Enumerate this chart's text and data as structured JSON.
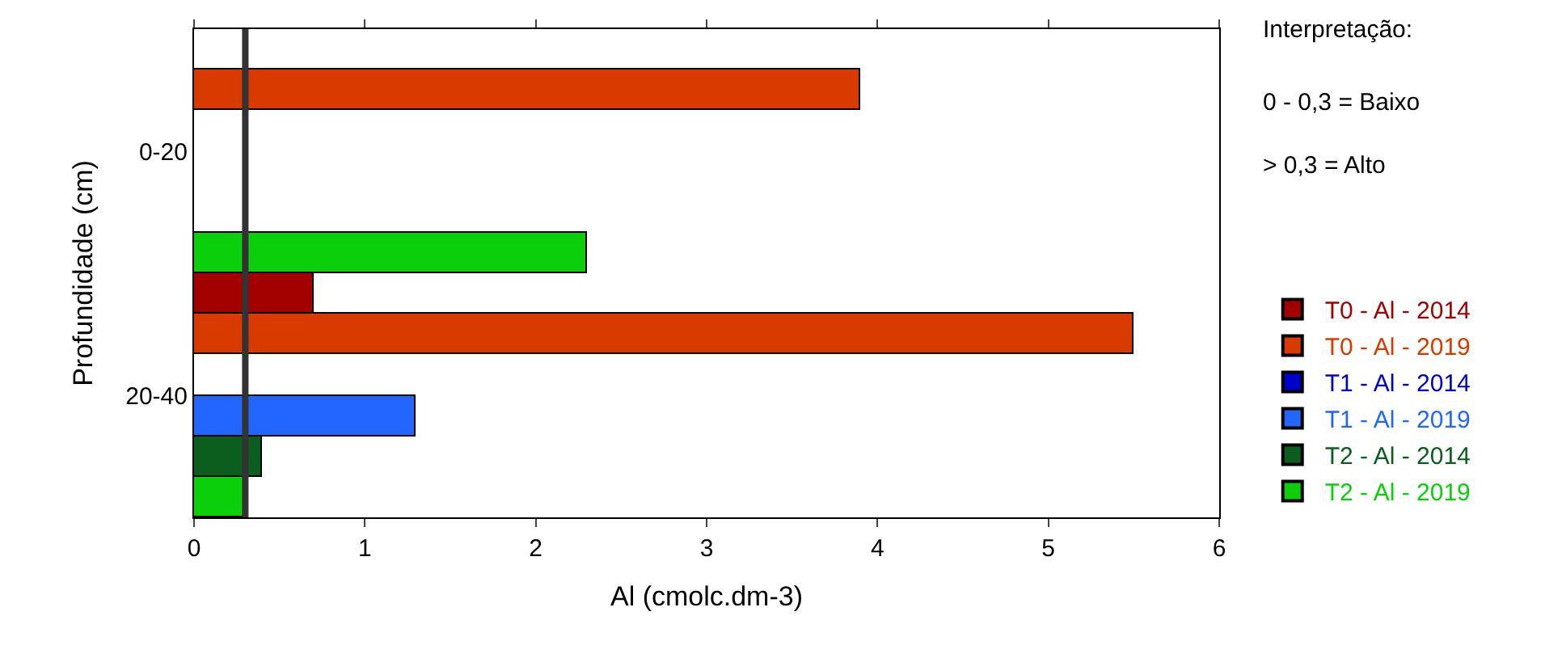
{
  "chart_data": {
    "type": "bar",
    "orientation": "horizontal",
    "xlabel": "Al (cmolc.dm-3)",
    "ylabel": "Profundidade (cm)",
    "categories": [
      "0-20",
      "20-40"
    ],
    "series": [
      {
        "name": "T0 - Al - 2014",
        "color": "#a30000",
        "values": [
          null,
          0.7
        ]
      },
      {
        "name": "T0 - Al - 2019",
        "color": "#d93a00",
        "values": [
          3.9,
          5.5
        ]
      },
      {
        "name": "T1 - Al - 2014",
        "color": "#0000cc",
        "values": [
          null,
          null
        ]
      },
      {
        "name": "T1 - Al - 2019",
        "color": "#2266ff",
        "values": [
          null,
          1.3
        ]
      },
      {
        "name": "T2 - Al - 2014",
        "color": "#0b5e1e",
        "values": [
          null,
          0.4
        ]
      },
      {
        "name": "T2 - Al - 2019",
        "color": "#0ccf0c",
        "values": [
          2.3,
          0.3
        ]
      }
    ],
    "xlim": [
      0,
      6
    ],
    "xticks": [
      0,
      1,
      2,
      3,
      4,
      5,
      6
    ],
    "ref_lines": [
      {
        "axis": "x",
        "value": 0.3,
        "color": "#333333"
      }
    ],
    "annotations": [
      "Interpretação:",
      "0 - 0,3 = Baixo",
      "> 0,3 = Alto"
    ],
    "legend": "right"
  }
}
